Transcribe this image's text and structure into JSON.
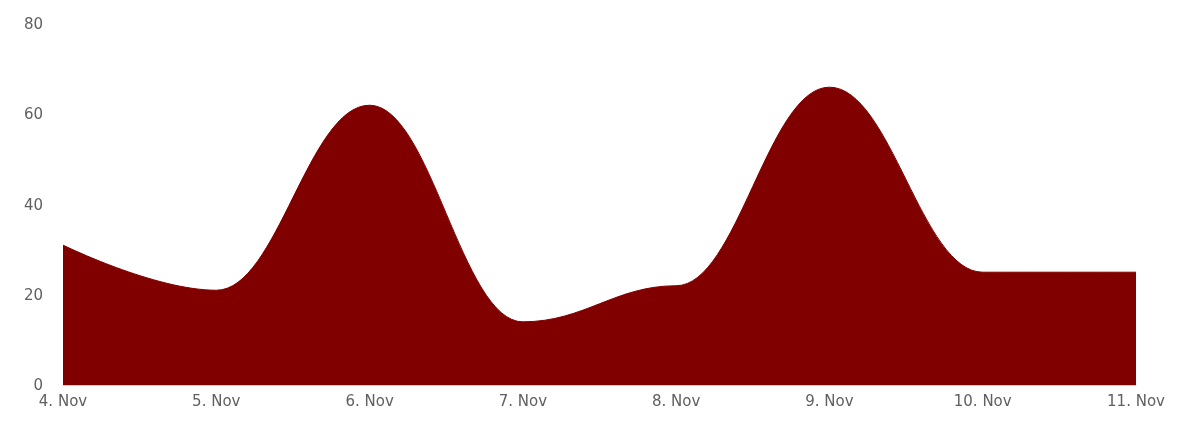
{
  "chart_data": {
    "type": "area",
    "categories": [
      "4. Nov",
      "5. Nov",
      "6. Nov",
      "7. Nov",
      "8. Nov",
      "9. Nov",
      "10. Nov",
      "11. Nov"
    ],
    "series": [
      {
        "color": "#800000",
        "values": [
          31,
          21,
          62,
          14,
          22,
          66,
          25,
          25
        ]
      }
    ],
    "ylim": [
      0,
      80
    ],
    "yticks": [
      0,
      20,
      40,
      60,
      80
    ],
    "grid": false,
    "marker": "none"
  }
}
